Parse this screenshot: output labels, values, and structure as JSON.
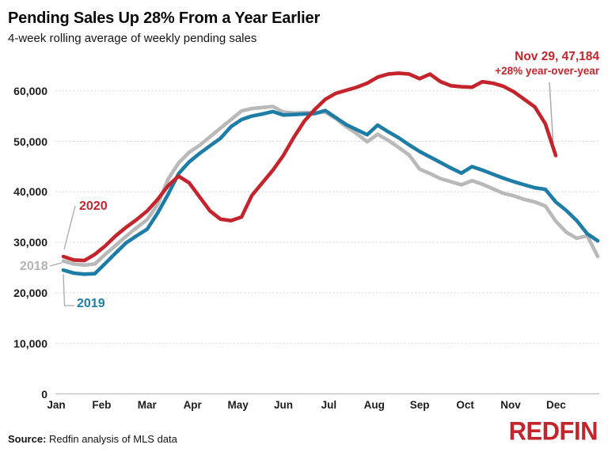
{
  "header": {
    "title": "Pending Sales Up 28% From a Year Earlier",
    "subtitle": "4-week rolling average of weekly pending sales"
  },
  "colors": {
    "red_2020": "#c4252c",
    "blue_2019": "#1e7da6",
    "gray_2018": "#b9b9b9",
    "label_gray_2018": "#b3b3b3",
    "gridline": "#c9c9c9",
    "leader_line": "#a9a9a9",
    "logo_red": "#c4252c"
  },
  "chart_data": {
    "type": "line",
    "title": "Pending Sales Up 28% From a Year Earlier",
    "subtitle": "4-week rolling average of weekly pending sales",
    "x_axis": {
      "tick_labels": [
        "Jan",
        "Feb",
        "Mar",
        "Apr",
        "May",
        "Jun",
        "Jul",
        "Aug",
        "Sep",
        "Oct",
        "Nov",
        "Dec"
      ],
      "unit": "weekly points, Jan through Dec"
    },
    "y_axis": {
      "min": 0,
      "max": 65000,
      "grid": "dotted horizontal lines at each 10,000",
      "ticks": [
        {
          "label": "0",
          "value": 0
        },
        {
          "label": "10,000",
          "value": 10000
        },
        {
          "label": "20,000",
          "value": 20000
        },
        {
          "label": "30,000",
          "value": 30000
        },
        {
          "label": "40,000",
          "value": 40000
        },
        {
          "label": "50,000",
          "value": 50000
        },
        {
          "label": "60,000",
          "value": 60000
        }
      ]
    },
    "series": [
      {
        "name": "2018",
        "color": "#b9b9b9",
        "label_color": "#b3b3b3",
        "values": [
          26300,
          25700,
          25500,
          25700,
          27600,
          29400,
          31200,
          32900,
          34500,
          37500,
          42500,
          45700,
          47800,
          49200,
          50900,
          52600,
          54300,
          56000,
          56500,
          56700,
          56900,
          55800,
          55600,
          55700,
          55600,
          55800,
          54500,
          52900,
          51500,
          49900,
          51400,
          50200,
          48800,
          47300,
          44500,
          43600,
          42600,
          42000,
          41400,
          42200,
          41500,
          40600,
          39700,
          39200,
          38500,
          38000,
          37200,
          34200,
          32000,
          30800,
          31300,
          27200
        ]
      },
      {
        "name": "2019",
        "color": "#1e7da6",
        "label_color": "#1e7da6",
        "values": [
          24500,
          23900,
          23700,
          23800,
          25800,
          27900,
          29900,
          31300,
          32600,
          35800,
          39500,
          43600,
          45900,
          47600,
          49100,
          50600,
          52900,
          54300,
          55000,
          55400,
          55900,
          55200,
          55300,
          55400,
          55500,
          56100,
          54700,
          53300,
          52300,
          51300,
          53200,
          51900,
          50700,
          49300,
          48000,
          46900,
          45800,
          44700,
          43700,
          45000,
          44300,
          43500,
          42700,
          42000,
          41400,
          40800,
          40500,
          38000,
          36300,
          34300,
          31700,
          30300
        ]
      },
      {
        "name": "2020",
        "color": "#c4252c",
        "label_color": "#c4252c",
        "values": [
          27200,
          26500,
          26400,
          27600,
          29300,
          31300,
          33000,
          34500,
          36200,
          38500,
          41200,
          43100,
          41800,
          39000,
          36200,
          34600,
          34300,
          35000,
          39300,
          41800,
          44300,
          47200,
          50800,
          54000,
          56300,
          58300,
          59500,
          60100,
          60700,
          61500,
          62700,
          63300,
          63500,
          63300,
          62400,
          63300,
          61800,
          61000,
          60800,
          60700,
          61800,
          61500,
          60900,
          59800,
          58300,
          56800,
          53500,
          47184
        ]
      }
    ],
    "annotation": {
      "line1": "Nov 29, 47,184",
      "line2": "+28% year-over-year",
      "points_to": {
        "series": "2020",
        "date": "Nov 29",
        "value": 47184
      }
    },
    "legend_labels": [
      "2020",
      "2018",
      "2019"
    ],
    "legend_position": "inline labels near line starts (left side)"
  },
  "footer": {
    "source_label": "Source:",
    "source_text": " Redfin analysis of MLS data",
    "logo_text": "REDFIN"
  }
}
